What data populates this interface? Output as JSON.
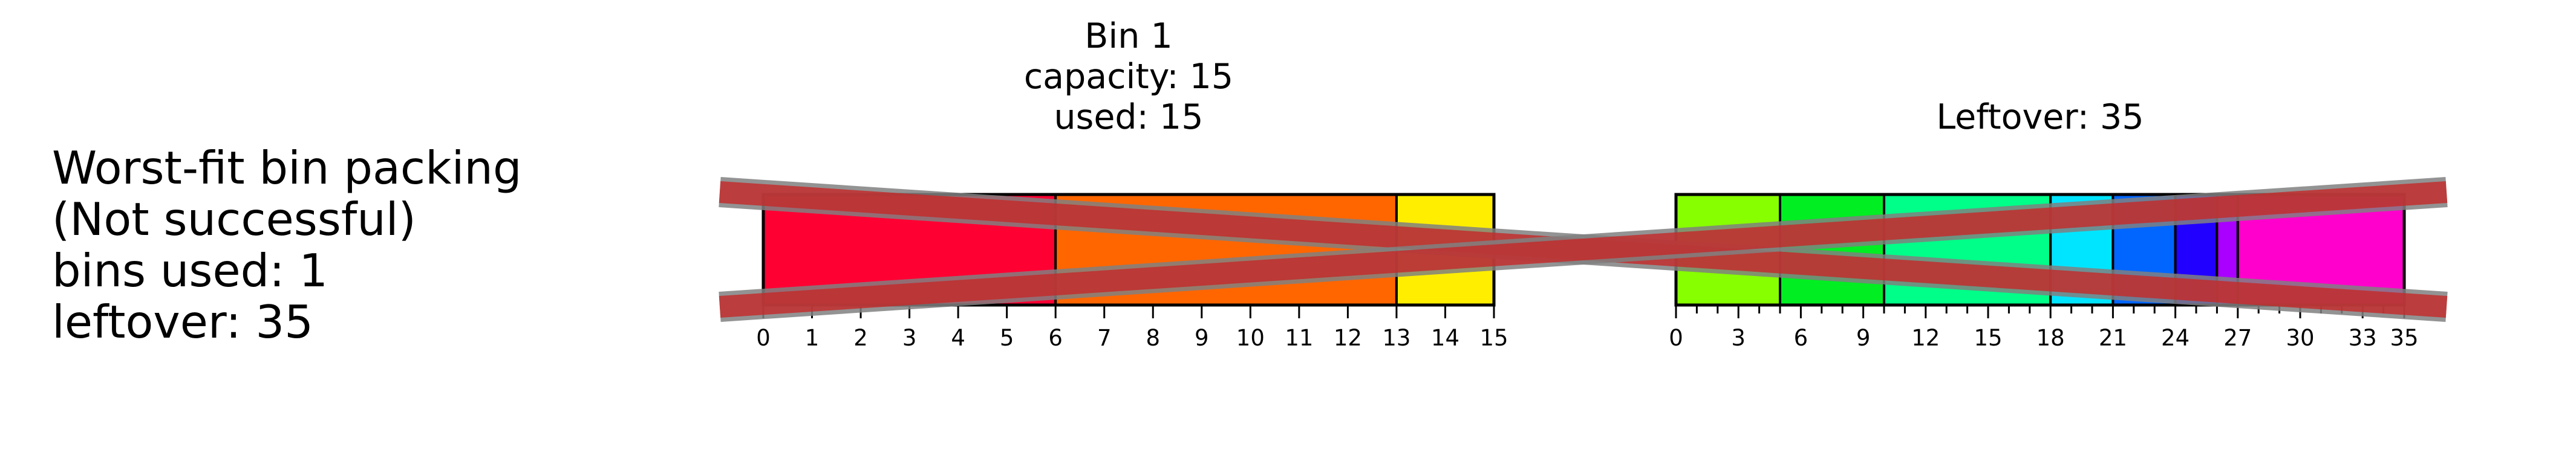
{
  "summary": {
    "lines": [
      "Worst-fit bin packing",
      "(Not successful)",
      "bins used: 1",
      "leftover: 35"
    ]
  },
  "colors": {
    "outline": "#000000",
    "cross_band": "#c62828",
    "cross_band_outline": "#808080"
  },
  "panels": [
    {
      "key": "bin-1",
      "header_lines": [
        "Bin 1",
        "capacity: 15",
        "used: 15"
      ],
      "max_value": 15,
      "ticks": [
        0,
        1,
        2,
        3,
        4,
        5,
        6,
        7,
        8,
        9,
        10,
        11,
        12,
        13,
        14,
        15
      ],
      "minor_ticks": [],
      "segments": [
        {
          "start": 0,
          "end": 6,
          "color": "#ff0033"
        },
        {
          "start": 6,
          "end": 13,
          "color": "#ff6600"
        },
        {
          "start": 13,
          "end": 15,
          "color": "#ffee00"
        }
      ],
      "crossed": false
    },
    {
      "key": "leftover",
      "header_lines": [
        "Leftover: 35"
      ],
      "max_value": 35,
      "ticks": [
        0,
        3,
        6,
        9,
        12,
        15,
        18,
        21,
        24,
        27,
        30,
        33,
        35
      ],
      "minor_ticks": [
        1,
        2,
        4,
        5,
        7,
        8,
        10,
        11,
        13,
        14,
        16,
        17,
        19,
        20,
        22,
        23,
        25,
        26,
        28,
        29,
        31,
        32,
        34
      ],
      "segments": [
        {
          "start": 0,
          "end": 5,
          "color": "#88ff00"
        },
        {
          "start": 5,
          "end": 10,
          "color": "#00ee22"
        },
        {
          "start": 10,
          "end": 18,
          "color": "#00ff88"
        },
        {
          "start": 18,
          "end": 21,
          "color": "#00e5ff"
        },
        {
          "start": 21,
          "end": 24,
          "color": "#0066ff"
        },
        {
          "start": 24,
          "end": 26,
          "color": "#2200ff"
        },
        {
          "start": 26,
          "end": 27,
          "color": "#aa00ff"
        },
        {
          "start": 27,
          "end": 35,
          "color": "#ff00cc"
        }
      ],
      "crossed": true
    }
  ]
}
